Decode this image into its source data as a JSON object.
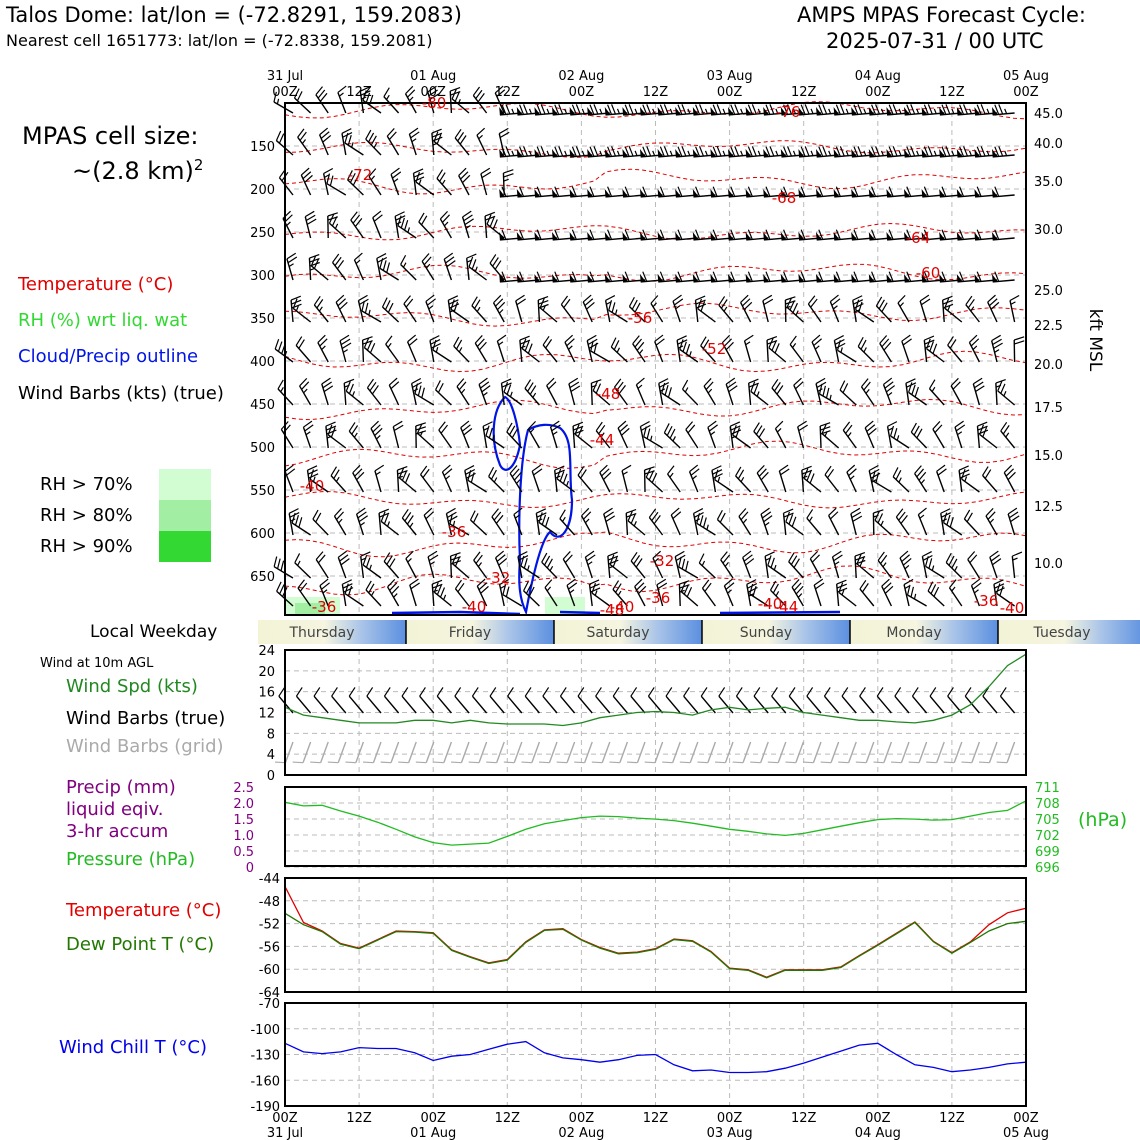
{
  "header": {
    "station": "Talos Dome: lat/lon = (-72.8291, 159.2083)",
    "nearest": "Nearest cell 1651773: lat/lon = (-72.8338, 159.2081)",
    "model_line1": "AMPS MPAS Forecast Cycle:",
    "model_line2": "2025-07-31 / 00 UTC"
  },
  "cell_size": {
    "line1": "MPAS cell size:",
    "line2": "~(2.8 km)",
    "sup": "2"
  },
  "legend_top": {
    "temperature": "Temperature (°C)",
    "rh": "RH (%) wrt liq. wat",
    "cloud": "Cloud/Precip outline",
    "wind": "Wind Barbs (kts) (true)",
    "rh70": "RH > 70%",
    "rh80": "RH > 80%",
    "rh90": "RH > 90%"
  },
  "colors": {
    "temp": "#e00000",
    "rh70": "#d2fcd2",
    "rh80": "#a2eea2",
    "rh90": "#33d833",
    "cloud": "#0014e6",
    "pressure": "#22bb22",
    "precip": "#800080",
    "dew": "#227700",
    "chill": "#0000ee",
    "wind_spd": "#228822",
    "grid_barb": "#aaaaaa"
  },
  "time_axis": {
    "top_labels": [
      {
        "l1": "31 Jul",
        "l2": "00Z"
      },
      {
        "l1": "",
        "l2": "12Z"
      },
      {
        "l1": "01 Aug",
        "l2": "00Z"
      },
      {
        "l1": "",
        "l2": "12Z"
      },
      {
        "l1": "02 Aug",
        "l2": "00Z"
      },
      {
        "l1": "",
        "l2": "12Z"
      },
      {
        "l1": "03 Aug",
        "l2": "00Z"
      },
      {
        "l1": "",
        "l2": "12Z"
      },
      {
        "l1": "04 Aug",
        "l2": "00Z"
      },
      {
        "l1": "",
        "l2": "12Z"
      },
      {
        "l1": "05 Aug",
        "l2": "00Z"
      }
    ],
    "bottom_labels": [
      {
        "l1": "00Z",
        "l2": "31 Jul"
      },
      {
        "l1": "12Z",
        "l2": ""
      },
      {
        "l1": "00Z",
        "l2": "01 Aug"
      },
      {
        "l1": "12Z",
        "l2": ""
      },
      {
        "l1": "00Z",
        "l2": "02 Aug"
      },
      {
        "l1": "12Z",
        "l2": ""
      },
      {
        "l1": "00Z",
        "l2": "03 Aug"
      },
      {
        "l1": "12Z",
        "l2": ""
      },
      {
        "l1": "00Z",
        "l2": "04 Aug"
      },
      {
        "l1": "12Z",
        "l2": ""
      },
      {
        "l1": "00Z",
        "l2": "05 Aug"
      }
    ]
  },
  "weekday": {
    "label": "Local Weekday",
    "days": [
      "Thursday",
      "Friday",
      "Saturday",
      "Sunday",
      "Monday",
      "Tuesday"
    ]
  },
  "chart_data": [
    {
      "type": "contour",
      "title": "",
      "x_range_hours": [
        0,
        120
      ],
      "y_left_ticks": [
        150,
        200,
        250,
        300,
        350,
        400,
        450,
        500,
        550,
        600,
        650
      ],
      "y_right_ticks": [
        "45.0",
        "40.0",
        "35.0",
        "30.0",
        "25.0",
        "22.5",
        "20.0",
        "17.5",
        "15.0",
        "12.5",
        "10.0"
      ],
      "y_right_label": "kft MSL",
      "temp_labels": [
        "-80",
        "-76",
        "-72",
        "-68",
        "-64",
        "-60",
        "-56",
        "-52",
        "-48",
        "-44",
        "-40",
        "-36",
        "-32",
        "-32",
        "-36",
        "-40",
        "-40",
        "-36",
        "-40",
        "-44",
        "-48",
        "-36",
        "-40"
      ],
      "grid": true
    },
    {
      "type": "line",
      "title": "Wind at 10m AGL",
      "series_name": "Wind Spd (kts)",
      "barb_label": "Wind Barbs (true)",
      "grid_barb_label": "Wind Barbs (grid)",
      "x_hours": [
        0,
        3,
        6,
        9,
        12,
        15,
        18,
        21,
        24,
        27,
        30,
        33,
        36,
        39,
        42,
        45,
        48,
        51,
        54,
        57,
        60,
        63,
        66,
        69,
        72,
        75,
        78,
        81,
        84,
        87,
        90,
        93,
        96,
        99,
        102,
        105,
        108,
        111,
        114,
        117,
        120
      ],
      "values": [
        13,
        11.5,
        11,
        10.5,
        10,
        10,
        10,
        10.5,
        10.5,
        10,
        10.5,
        10,
        9.8,
        9.8,
        9.8,
        9.5,
        10,
        11,
        11.5,
        12,
        12.2,
        12,
        11.5,
        12.5,
        13,
        12.5,
        12.8,
        13,
        12,
        11.5,
        11,
        10.5,
        10.5,
        10.2,
        10,
        10.5,
        11.5,
        13.5,
        17,
        21,
        23.2
      ],
      "ylim": [
        0,
        24
      ],
      "yticks": [
        0,
        4,
        8,
        12,
        16,
        20,
        24
      ]
    },
    {
      "type": "line",
      "series": [
        {
          "name": "Pressure (hPa)",
          "axis": "right",
          "x_hours": [
            0,
            3,
            6,
            9,
            12,
            15,
            18,
            21,
            24,
            27,
            30,
            33,
            36,
            39,
            42,
            45,
            48,
            51,
            54,
            57,
            60,
            63,
            66,
            69,
            72,
            75,
            78,
            81,
            84,
            87,
            90,
            93,
            96,
            99,
            102,
            105,
            108,
            111,
            114,
            117,
            120
          ],
          "values": [
            708.5,
            707.8,
            707.9,
            706.8,
            705.8,
            704.6,
            703.2,
            701.7,
            700.6,
            700.1,
            700.3,
            700.5,
            701.8,
            703.2,
            704.3,
            704.9,
            705.5,
            705.8,
            705.7,
            705.4,
            705.2,
            704.9,
            704.4,
            703.8,
            703.2,
            702.8,
            702.3,
            702.0,
            702.4,
            703.1,
            703.8,
            704.5,
            705.1,
            705.3,
            705.2,
            705.0,
            705.1,
            705.8,
            706.5,
            706.9,
            708.8
          ]
        },
        {
          "name": "Precip (mm) liquid eqiv. 3-hr accum",
          "axis": "left",
          "values": []
        }
      ],
      "precip_label": [
        "Precip (mm)",
        "liquid eqiv.",
        "3-hr accum"
      ],
      "yticks_left": [
        "2.5",
        "2.0",
        "1.5",
        "1.0",
        "0.5",
        "0"
      ],
      "yticks_right": [
        "711",
        "708",
        "705",
        "702",
        "699",
        "696"
      ],
      "right_unit": "(hPa)"
    },
    {
      "type": "line",
      "series": [
        {
          "name": "Temperature (°C)",
          "x_hours": [
            0,
            3,
            6,
            9,
            12,
            15,
            18,
            21,
            24,
            27,
            30,
            33,
            36,
            39,
            42,
            45,
            48,
            51,
            54,
            57,
            60,
            63,
            66,
            69,
            72,
            75,
            78,
            81,
            84,
            87,
            90,
            93,
            96,
            99,
            102,
            105,
            108,
            111,
            114,
            117,
            120
          ],
          "values": [
            -45.5,
            -51.8,
            -53.3,
            -55.5,
            -56.3,
            -54.8,
            -53.3,
            -53.4,
            -53.6,
            -56.6,
            -57.8,
            -58.9,
            -58.3,
            -55.2,
            -53.1,
            -52.9,
            -54.8,
            -56.2,
            -57.2,
            -57.0,
            -56.4,
            -54.7,
            -55.0,
            -56.9,
            -59.8,
            -60.1,
            -61.4,
            -60.1,
            -60.1,
            -60.1,
            -59.6,
            -57.6,
            -55.7,
            -53.7,
            -51.7,
            -55.1,
            -57.1,
            -55.2,
            -52.2,
            -50.1,
            -49.3
          ]
        },
        {
          "name": "Dew Point T (°C)",
          "x_hours": [
            0,
            3,
            6,
            9,
            12,
            15,
            18,
            21,
            24,
            27,
            30,
            33,
            36,
            39,
            42,
            45,
            48,
            51,
            54,
            57,
            60,
            63,
            66,
            69,
            72,
            75,
            78,
            81,
            84,
            87,
            90,
            93,
            96,
            99,
            102,
            105,
            108,
            111,
            114,
            117,
            120
          ],
          "values": [
            -50.2,
            -52.2,
            -53.4,
            -55.6,
            -56.4,
            -54.9,
            -53.4,
            -53.5,
            -53.7,
            -56.7,
            -57.9,
            -59.0,
            -58.4,
            -55.3,
            -53.2,
            -53.0,
            -54.9,
            -56.3,
            -57.3,
            -57.1,
            -56.5,
            -54.8,
            -55.1,
            -57.0,
            -59.9,
            -60.2,
            -61.5,
            -60.2,
            -60.2,
            -60.2,
            -59.7,
            -57.7,
            -55.8,
            -53.8,
            -51.8,
            -55.2,
            -57.2,
            -55.3,
            -53.3,
            -52.0,
            -51.6
          ]
        }
      ],
      "ylim": [
        -64,
        -44
      ],
      "yticks": [
        -44,
        -48,
        -52,
        -56,
        -60,
        -64
      ]
    },
    {
      "type": "line",
      "series": [
        {
          "name": "Wind Chill T (°C)",
          "x_hours": [
            0,
            3,
            6,
            9,
            12,
            15,
            18,
            21,
            24,
            27,
            30,
            33,
            36,
            39,
            42,
            45,
            48,
            51,
            54,
            57,
            60,
            63,
            66,
            69,
            72,
            75,
            78,
            81,
            84,
            87,
            90,
            93,
            96,
            99,
            102,
            105,
            108,
            111,
            114,
            117,
            120
          ],
          "values": [
            -117,
            -127,
            -129,
            -127,
            -122,
            -123,
            -123,
            -128,
            -137,
            -132,
            -130,
            -124,
            -118,
            -115,
            -128,
            -134,
            -136,
            -139,
            -136,
            -131,
            -130,
            -142,
            -149,
            -148,
            -151,
            -151,
            -150,
            -146,
            -140,
            -133,
            -126,
            -119,
            -117,
            -130,
            -142,
            -145,
            -150,
            -148,
            -145,
            -141,
            -139
          ]
        }
      ],
      "ylim": [
        -190,
        -70
      ],
      "yticks": [
        -70,
        -100,
        -130,
        -160,
        -190
      ]
    }
  ]
}
